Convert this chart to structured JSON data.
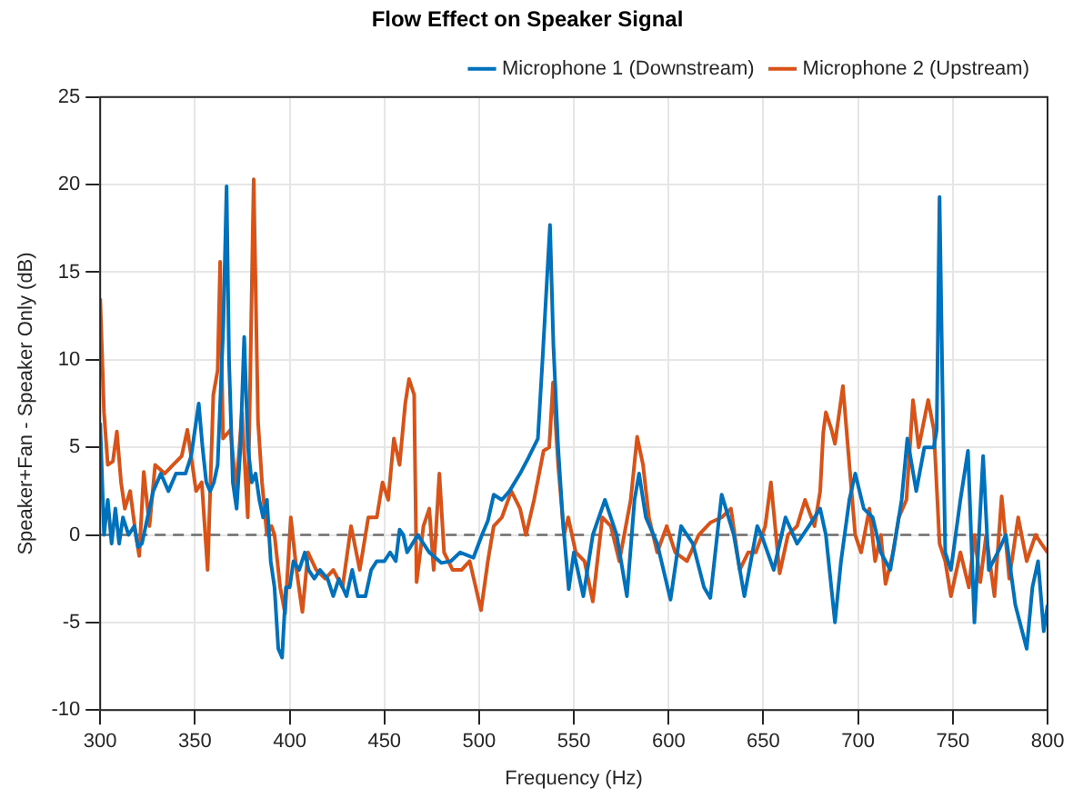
{
  "chart_data": {
    "type": "line",
    "title": "Flow Effect on Speaker Signal",
    "xlabel": "Frequency (Hz)",
    "ylabel": "Speaker+Fan - Speaker Only (dB)",
    "xlim": [
      300,
      800
    ],
    "xticks": [
      300,
      350,
      400,
      450,
      500,
      550,
      600,
      650,
      700,
      750,
      800
    ],
    "ylim": [
      -10,
      25
    ],
    "yticks": [
      -10,
      -5,
      0,
      5,
      10,
      15,
      20,
      25
    ],
    "grid": true,
    "legend": "top right",
    "marker": "none",
    "line_style": "solid",
    "ref_lines": [
      {
        "axis": "y",
        "value": 0,
        "color": "#6e6e6e",
        "line_style": "dashed"
      }
    ],
    "series": [
      {
        "name": "Microphone 1 (Downstream)",
        "color": "#0072bd",
        "x": [
          300,
          302,
          304,
          306,
          308,
          310,
          312,
          315,
          318,
          320,
          322,
          325,
          328,
          332,
          336,
          340,
          345,
          348,
          350,
          352,
          354,
          356,
          358,
          360,
          362,
          365,
          366.7,
          368,
          370,
          372,
          374,
          376,
          378,
          380,
          382,
          384,
          386,
          388,
          390,
          392,
          394,
          396,
          398,
          400,
          402,
          405,
          408,
          410,
          413,
          416,
          420,
          423,
          426,
          430,
          433,
          436,
          440,
          443,
          446,
          450,
          453,
          456,
          458,
          460,
          462,
          467.6,
          473.7,
          480,
          485,
          490,
          497,
          501.5,
          504.6,
          507.7,
          512,
          516,
          521.6,
          526,
          531,
          533.4,
          537.4,
          539.2,
          541.7,
          544.2,
          547.3,
          550,
          555,
          560,
          566.4,
          572.6,
          578,
          582,
          584.4,
          588,
          594,
          601,
          606.6,
          612.8,
          618.7,
          622,
          628,
          634.4,
          640,
          646.8,
          649,
          655.5,
          661.7,
          667.8,
          674,
          680,
          683,
          687.8,
          691,
          695.4,
          698.5,
          703,
          707.7,
          712,
          717,
          723,
          726,
          730.7,
          735,
          740,
          741.5,
          743,
          744.6,
          746,
          749,
          754,
          758,
          761.4,
          766,
          769,
          773.7,
          778,
          783,
          789,
          792,
          795,
          798,
          800
        ],
        "values": [
          6.4,
          0,
          2,
          -0.5,
          1.5,
          -0.5,
          1,
          0,
          0.5,
          -0.7,
          -0.5,
          1,
          2.5,
          3.5,
          2.5,
          3.5,
          3.5,
          4.5,
          6,
          7.5,
          5,
          3,
          2.5,
          3,
          4,
          12,
          19.9,
          10,
          3,
          1.5,
          5,
          11.3,
          5,
          3,
          3.5,
          2,
          1,
          2,
          -1.5,
          -3,
          -6.5,
          -7,
          -3,
          -3,
          -1.5,
          -2,
          -1,
          -2,
          -2.5,
          -2,
          -2.5,
          -3.5,
          -2.5,
          -3.5,
          -2,
          -3.5,
          -3.5,
          -2,
          -1.5,
          -1.5,
          -1,
          -1.5,
          0.3,
          0,
          -1,
          0,
          -1,
          -1.6,
          -1.5,
          -1,
          -1.3,
          0,
          0.8,
          2.3,
          2,
          2.5,
          3.5,
          4.4,
          5.5,
          9.9,
          17.7,
          10.8,
          5,
          0.8,
          -3.1,
          -1,
          -3.5,
          0,
          2,
          0,
          -3.5,
          2,
          3.5,
          1,
          -0.5,
          -3.7,
          0.5,
          -0.5,
          -3,
          -3.6,
          2.3,
          0,
          -3.5,
          0.5,
          0,
          -2,
          1,
          -0.5,
          0.5,
          1.5,
          0,
          -5,
          -1.5,
          2,
          3.5,
          1.5,
          1,
          -1,
          -2,
          2,
          5.5,
          2.5,
          5,
          5,
          6,
          19.3,
          8,
          -1,
          -2,
          2,
          4.8,
          -5,
          4.5,
          -2,
          -1,
          0,
          -4,
          -6.5,
          -3,
          -1.5,
          -5.5,
          -4
        ]
      },
      {
        "name": "Microphone 2 (Upstream)",
        "color": "#d95319",
        "x": [
          300,
          302,
          304,
          306.7,
          308.8,
          311,
          313,
          315.8,
          318.8,
          320.6,
          323,
          326,
          329,
          334,
          338.5,
          343,
          346,
          350.6,
          353.6,
          356.7,
          359.7,
          362,
          363.3,
          364.8,
          368.8,
          371.8,
          374.8,
          377.9,
          381,
          383.3,
          385.4,
          388,
          390.4,
          392,
          395,
          397.6,
          400.6,
          403.6,
          406.7,
          409.7,
          414,
          418.8,
          423,
          427.9,
          432.4,
          437,
          441.5,
          446,
          449,
          452,
          455,
          458,
          461,
          463,
          465.7,
          467,
          470.6,
          473.7,
          476,
          479,
          481.5,
          486,
          490.7,
          495,
          501,
          504.6,
          507.7,
          512,
          517,
          521.6,
          524.7,
          529,
          534,
          537,
          539,
          541.7,
          544.8,
          547,
          551,
          555.6,
          560,
          565,
          569.5,
          574,
          580,
          583.4,
          586.5,
          589.6,
          594,
          599,
          603.5,
          609.7,
          615.9,
          622,
          628,
          632.9,
          637.5,
          642,
          646,
          651,
          654,
          658.6,
          663,
          667.8,
          672,
          677,
          680,
          681.6,
          683,
          686,
          687.8,
          692,
          695.4,
          698.5,
          701.6,
          706,
          709,
          712,
          714.5,
          718.5,
          721.5,
          725.5,
          729,
          732,
          737,
          740,
          743,
          746,
          749,
          754,
          758.5,
          761.4,
          764.5,
          767.6,
          772,
          775.8,
          779.8,
          784.5,
          789,
          793.7,
          796.7,
          800
        ],
        "values": [
          13.5,
          7,
          4,
          4.2,
          5.9,
          3,
          1.5,
          2.5,
          0,
          -1.2,
          3.6,
          0.5,
          4,
          3.5,
          4,
          4.5,
          6,
          2.5,
          3,
          -2,
          8,
          9.4,
          15.6,
          5.5,
          6,
          2.5,
          7,
          1,
          20.3,
          6.5,
          3,
          0,
          0.5,
          0,
          -3,
          -4.5,
          1,
          -2,
          -4.4,
          -1,
          -2,
          -2.5,
          -2,
          -3,
          0.5,
          -2,
          1,
          1,
          3,
          2,
          5.5,
          4,
          7.5,
          8.9,
          8,
          -2.7,
          0.5,
          1.5,
          -2,
          3.5,
          -1,
          -2,
          -2,
          -1.5,
          -4.3,
          -1.5,
          0.5,
          1,
          2.5,
          1.5,
          0,
          2,
          4.8,
          5,
          8.7,
          4,
          0,
          1,
          -1,
          -1.5,
          -3.8,
          1,
          0.5,
          -1.5,
          2,
          5.6,
          4,
          1,
          -1,
          0.5,
          -1,
          -1.5,
          0,
          0.7,
          1,
          1.5,
          -2,
          -1,
          -1,
          0.5,
          3,
          -2.2,
          0,
          0.5,
          2,
          0.5,
          2.5,
          5.8,
          7,
          6,
          5.2,
          8.5,
          4,
          0,
          -1,
          1.5,
          -1.5,
          0,
          -2.8,
          -1,
          1,
          2,
          7.7,
          5,
          7.7,
          6,
          -0.5,
          -1.5,
          -3.5,
          -1,
          -3,
          0,
          -2.7,
          0,
          -3.5,
          2.2,
          -2.5,
          1,
          -1.5,
          0,
          -0.5,
          -1
        ]
      }
    ]
  }
}
